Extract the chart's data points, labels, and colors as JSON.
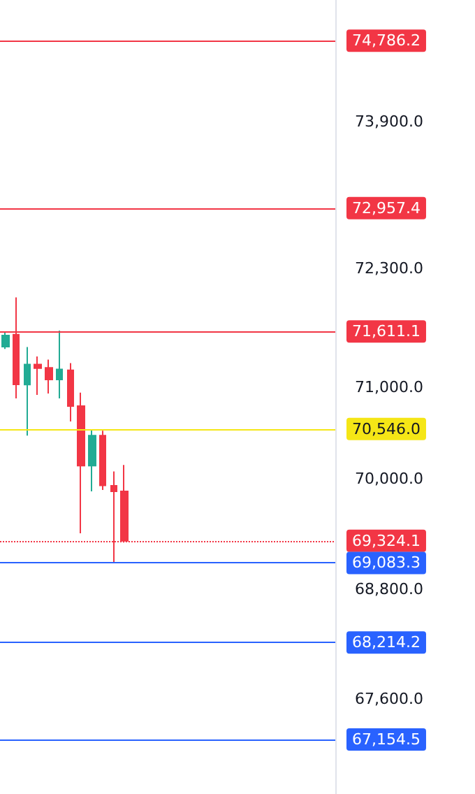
{
  "chart_data": {
    "type": "candlestick",
    "categories": [
      null,
      null,
      null,
      null,
      null,
      null,
      null,
      null,
      null,
      null,
      null,
      null,
      null,
      null,
      null,
      null,
      null,
      null,
      null,
      null,
      null,
      null,
      null,
      null,
      null,
      null,
      null,
      null,
      null,
      null,
      null
    ],
    "ohlc": [
      [
        71445,
        71600,
        71420,
        71567
      ],
      [
        71576,
        71983,
        70880,
        71032
      ],
      [
        71030,
        71440,
        70473,
        71250
      ],
      [
        71250,
        71338,
        70917,
        71210
      ],
      [
        71213,
        71303,
        70933,
        71086
      ],
      [
        71086,
        71620,
        70880,
        71197
      ],
      [
        71186,
        71265,
        70628,
        70795
      ],
      [
        70795,
        70943,
        69406,
        70145
      ],
      [
        70145,
        70541,
        69865,
        70473
      ],
      [
        70473,
        70526,
        69880,
        69930
      ],
      [
        69925,
        70083,
        69090,
        69865
      ],
      [
        69865,
        70153,
        69306,
        69324.1
      ],
      null,
      null,
      null,
      null,
      null,
      null,
      null,
      null,
      null,
      null,
      null,
      null,
      null,
      null,
      null,
      null,
      null,
      null,
      null
    ],
    "colors": [
      "#22ab94",
      "#f23645",
      "#22ab94",
      "#f23645",
      "#f23645",
      "#22ab94",
      "#f23645",
      "#f23645",
      "#22ab94",
      "#f23645",
      "#f23645",
      "#f23645",
      null,
      null,
      null,
      null,
      null,
      null,
      null,
      null,
      null,
      null,
      null,
      null,
      null,
      null,
      null,
      null,
      null,
      null,
      null
    ],
    "ylim": [
      66560,
      75230
    ],
    "yticks": [
      {
        "value": 73900,
        "label": "73,900.0"
      },
      {
        "value": 72300,
        "label": "72,300.0"
      },
      {
        "value": 71000,
        "label": "71,000.0"
      },
      {
        "value": 70000,
        "label": "70,000.0"
      },
      {
        "value": 68800,
        "label": "68,800.0"
      },
      {
        "value": 67600,
        "label": "67,600.0"
      }
    ],
    "ref_lines": [
      {
        "axis": "y",
        "value": 74786.2,
        "label": "74,786.2",
        "color": "#f23645",
        "line_style": "solid"
      },
      {
        "axis": "y",
        "value": 72957.4,
        "label": "72,957.4",
        "color": "#f23645",
        "line_style": "solid"
      },
      {
        "axis": "y",
        "value": 71611.1,
        "label": "71,611.1",
        "color": "#f23645",
        "line_style": "solid"
      },
      {
        "axis": "y",
        "value": 70546.0,
        "label": "70,546.0",
        "color": "#f5e616",
        "line_style": "solid"
      },
      {
        "axis": "y",
        "value": 69324.1,
        "label": "69,324.1",
        "color": "#f23645",
        "line_style": "dotted"
      },
      {
        "axis": "y",
        "value": 69083.3,
        "label": "69,083.3",
        "color": "#2962ff",
        "line_style": "solid"
      },
      {
        "axis": "y",
        "value": 68214.2,
        "label": "68,214.2",
        "color": "#2962ff",
        "line_style": "solid"
      },
      {
        "axis": "y",
        "value": 67154.5,
        "label": "67,154.5",
        "color": "#2962ff",
        "line_style": "solid"
      }
    ],
    "grid": false
  }
}
